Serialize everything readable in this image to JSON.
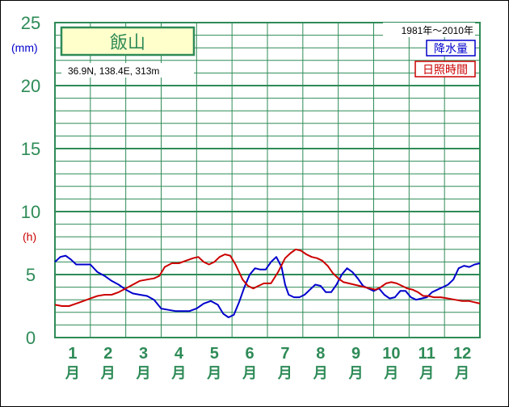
{
  "chart_data": {
    "type": "line",
    "title": "",
    "station": {
      "name": "飯山",
      "coords": "36.9N, 138.4E, 313m"
    },
    "period": "1981年〜2010年",
    "ylabel_left_top": "(mm)",
    "ylabel_left_mid": "(h)",
    "ylim": [
      0,
      25
    ],
    "yticks": [
      "0",
      "5",
      "10",
      "15",
      "20",
      "25"
    ],
    "months": [
      {
        "num": "1",
        "unit": "月"
      },
      {
        "num": "2",
        "unit": "月"
      },
      {
        "num": "3",
        "unit": "月"
      },
      {
        "num": "4",
        "unit": "月"
      },
      {
        "num": "5",
        "unit": "月"
      },
      {
        "num": "6",
        "unit": "月"
      },
      {
        "num": "7",
        "unit": "月"
      },
      {
        "num": "8",
        "unit": "月"
      },
      {
        "num": "9",
        "unit": "月"
      },
      {
        "num": "10",
        "unit": "月"
      },
      {
        "num": "11",
        "unit": "月"
      },
      {
        "num": "12",
        "unit": "月"
      }
    ],
    "x_range": [
      0.5,
      12.5
    ],
    "grid": true,
    "legend_position": "top-right",
    "series": [
      {
        "name": "降水量",
        "color": "#0000cc",
        "points": [
          [
            0.5,
            6.0
          ],
          [
            0.65,
            6.4
          ],
          [
            0.8,
            6.5
          ],
          [
            0.95,
            6.2
          ],
          [
            1.1,
            5.8
          ],
          [
            1.3,
            5.8
          ],
          [
            1.5,
            5.8
          ],
          [
            1.7,
            5.2
          ],
          [
            1.9,
            4.9
          ],
          [
            2.1,
            4.5
          ],
          [
            2.3,
            4.2
          ],
          [
            2.5,
            3.8
          ],
          [
            2.7,
            3.5
          ],
          [
            2.9,
            3.4
          ],
          [
            3.1,
            3.3
          ],
          [
            3.3,
            3.0
          ],
          [
            3.5,
            2.3
          ],
          [
            3.7,
            2.2
          ],
          [
            3.9,
            2.1
          ],
          [
            4.1,
            2.1
          ],
          [
            4.3,
            2.1
          ],
          [
            4.5,
            2.3
          ],
          [
            4.7,
            2.7
          ],
          [
            4.9,
            2.9
          ],
          [
            5.1,
            2.6
          ],
          [
            5.25,
            1.9
          ],
          [
            5.4,
            1.6
          ],
          [
            5.55,
            1.8
          ],
          [
            5.7,
            2.8
          ],
          [
            5.85,
            4.0
          ],
          [
            6.0,
            5.0
          ],
          [
            6.15,
            5.5
          ],
          [
            6.3,
            5.4
          ],
          [
            6.45,
            5.4
          ],
          [
            6.6,
            6.0
          ],
          [
            6.75,
            6.4
          ],
          [
            6.9,
            5.6
          ],
          [
            7.0,
            4.2
          ],
          [
            7.1,
            3.4
          ],
          [
            7.25,
            3.2
          ],
          [
            7.4,
            3.2
          ],
          [
            7.55,
            3.4
          ],
          [
            7.7,
            3.8
          ],
          [
            7.85,
            4.2
          ],
          [
            8.0,
            4.1
          ],
          [
            8.15,
            3.6
          ],
          [
            8.3,
            3.6
          ],
          [
            8.45,
            4.2
          ],
          [
            8.6,
            5.0
          ],
          [
            8.75,
            5.5
          ],
          [
            8.9,
            5.2
          ],
          [
            9.05,
            4.7
          ],
          [
            9.2,
            4.1
          ],
          [
            9.35,
            3.9
          ],
          [
            9.5,
            3.7
          ],
          [
            9.65,
            3.9
          ],
          [
            9.8,
            3.4
          ],
          [
            9.95,
            3.1
          ],
          [
            10.1,
            3.2
          ],
          [
            10.25,
            3.7
          ],
          [
            10.4,
            3.7
          ],
          [
            10.55,
            3.2
          ],
          [
            10.7,
            3.0
          ],
          [
            10.85,
            3.1
          ],
          [
            11.0,
            3.2
          ],
          [
            11.15,
            3.6
          ],
          [
            11.3,
            3.8
          ],
          [
            11.45,
            4.0
          ],
          [
            11.6,
            4.2
          ],
          [
            11.75,
            4.6
          ],
          [
            11.9,
            5.5
          ],
          [
            12.05,
            5.7
          ],
          [
            12.2,
            5.6
          ],
          [
            12.35,
            5.8
          ],
          [
            12.5,
            5.9
          ]
        ]
      },
      {
        "name": "日照時間",
        "color": "#cc0000",
        "points": [
          [
            0.5,
            2.6
          ],
          [
            0.7,
            2.5
          ],
          [
            0.9,
            2.5
          ],
          [
            1.1,
            2.7
          ],
          [
            1.3,
            2.9
          ],
          [
            1.5,
            3.1
          ],
          [
            1.7,
            3.3
          ],
          [
            1.9,
            3.4
          ],
          [
            2.1,
            3.4
          ],
          [
            2.3,
            3.6
          ],
          [
            2.5,
            3.9
          ],
          [
            2.7,
            4.2
          ],
          [
            2.9,
            4.5
          ],
          [
            3.1,
            4.6
          ],
          [
            3.3,
            4.7
          ],
          [
            3.45,
            4.9
          ],
          [
            3.6,
            5.6
          ],
          [
            3.8,
            5.9
          ],
          [
            4.0,
            5.9
          ],
          [
            4.2,
            6.1
          ],
          [
            4.4,
            6.3
          ],
          [
            4.55,
            6.4
          ],
          [
            4.7,
            6.0
          ],
          [
            4.85,
            5.8
          ],
          [
            5.0,
            6.0
          ],
          [
            5.15,
            6.4
          ],
          [
            5.3,
            6.6
          ],
          [
            5.45,
            6.5
          ],
          [
            5.6,
            5.8
          ],
          [
            5.8,
            4.6
          ],
          [
            5.95,
            4.1
          ],
          [
            6.1,
            3.9
          ],
          [
            6.25,
            4.1
          ],
          [
            6.4,
            4.3
          ],
          [
            6.6,
            4.3
          ],
          [
            6.8,
            5.2
          ],
          [
            7.0,
            6.3
          ],
          [
            7.15,
            6.7
          ],
          [
            7.3,
            7.0
          ],
          [
            7.45,
            6.9
          ],
          [
            7.6,
            6.6
          ],
          [
            7.75,
            6.4
          ],
          [
            7.9,
            6.3
          ],
          [
            8.05,
            6.1
          ],
          [
            8.2,
            5.7
          ],
          [
            8.35,
            5.1
          ],
          [
            8.5,
            4.7
          ],
          [
            8.65,
            4.4
          ],
          [
            8.8,
            4.3
          ],
          [
            8.95,
            4.2
          ],
          [
            9.1,
            4.1
          ],
          [
            9.25,
            4.0
          ],
          [
            9.4,
            3.9
          ],
          [
            9.55,
            3.8
          ],
          [
            9.7,
            4.0
          ],
          [
            9.85,
            4.3
          ],
          [
            10.0,
            4.4
          ],
          [
            10.15,
            4.3
          ],
          [
            10.3,
            4.1
          ],
          [
            10.45,
            3.9
          ],
          [
            10.6,
            3.8
          ],
          [
            10.75,
            3.6
          ],
          [
            10.9,
            3.3
          ],
          [
            11.05,
            3.3
          ],
          [
            11.2,
            3.2
          ],
          [
            11.4,
            3.2
          ],
          [
            11.6,
            3.1
          ],
          [
            11.8,
            3.0
          ],
          [
            12.0,
            2.9
          ],
          [
            12.2,
            2.9
          ],
          [
            12.35,
            2.8
          ],
          [
            12.5,
            2.7
          ]
        ]
      }
    ]
  }
}
